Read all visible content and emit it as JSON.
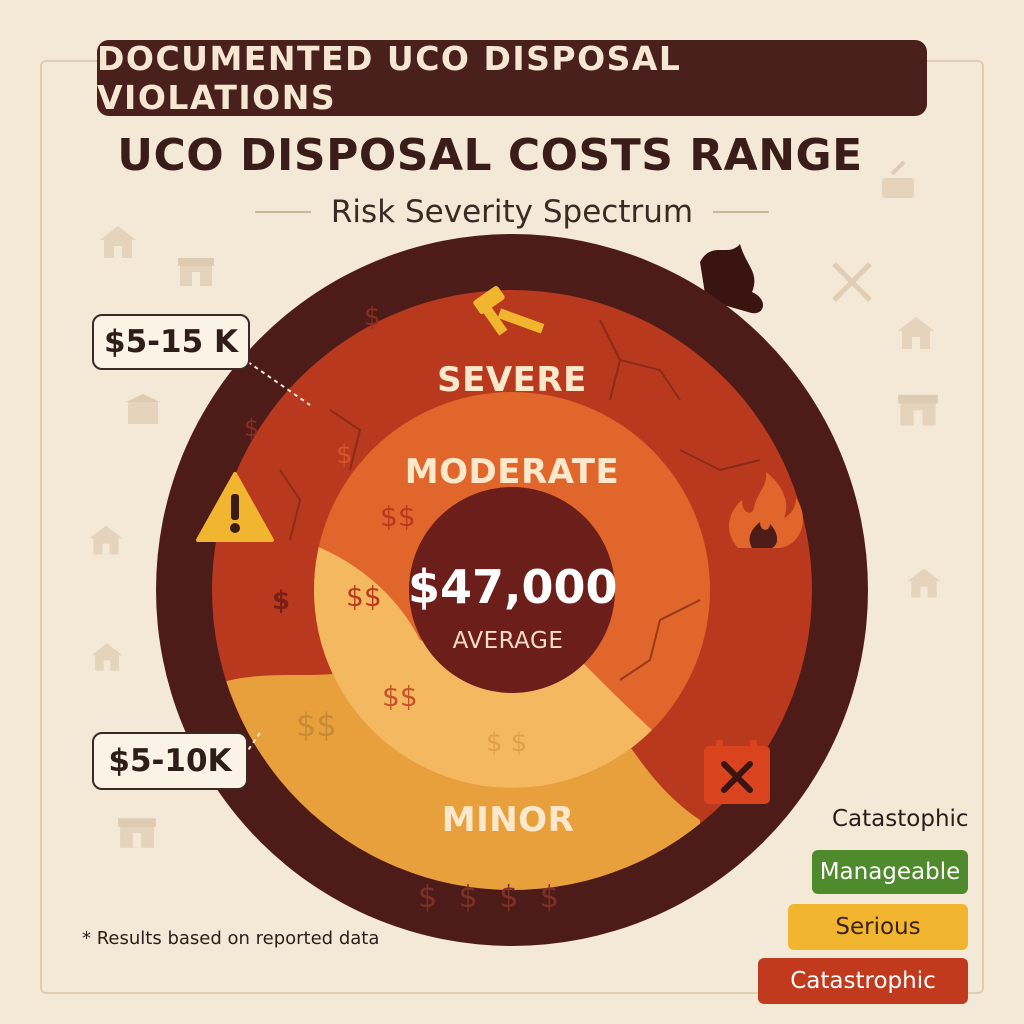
{
  "banner": {
    "text": "DOCUMENTED UCO DISPOSAL VIOLATIONS"
  },
  "title": "UCO DISPOSAL COSTS RANGE",
  "subtitle": "Risk Severity Spectrum",
  "rings": {
    "severe": "SEVERE",
    "moderate": "MODERATE",
    "minor": "MINOR"
  },
  "center": {
    "amount": "$47,000",
    "label": "AVERAGE"
  },
  "callouts": {
    "upper": "$5-15 K",
    "lower": "$5-10K"
  },
  "dollar_marks": {
    "single": "$",
    "double": "$$",
    "spaced": "$ $",
    "bottom_row": "$ $ $ $"
  },
  "icons": {
    "top": "gavel-icon",
    "left": "warning-icon",
    "right": "fire-icon",
    "bottom_right": "calendar-x-icon"
  },
  "footnote": "* Results based on reported data",
  "legend": {
    "title": "Catastophic",
    "items": [
      {
        "label": "Manageable",
        "color": "#4f8a2c",
        "text_color": "#ffffff"
      },
      {
        "label": "Serious",
        "color": "#f2b52f",
        "text_color": "#3a2215"
      },
      {
        "label": "Catastrophic",
        "color": "#c23a1e",
        "text_color": "#ffffff"
      }
    ]
  },
  "colors": {
    "banner": "#4a201c",
    "outer_ring": "#4d1c19",
    "severe": "#b8391d",
    "moderate": "#e0662c",
    "minor_band": "#f0b14a",
    "center": "#6b1e1a",
    "background": "#f4e8d6"
  }
}
